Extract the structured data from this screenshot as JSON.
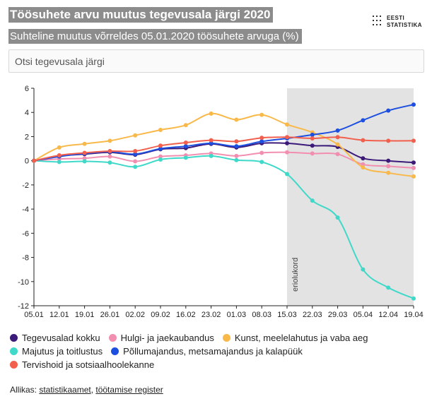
{
  "header": {
    "title": "Töösuhete arvu muutus tegevusala järgi 2020",
    "subtitle": "Suhteline muutus võrreldes 05.01.2020 töösuhete arvuga (%)"
  },
  "logo": {
    "line1": "EESTI",
    "line2": "STATISTIKA"
  },
  "search": {
    "placeholder": "Otsi tegevusala järgi"
  },
  "legend": {
    "rows": [
      [
        {
          "label": "Tegevusalad kokku",
          "color": "#3b1a7a"
        },
        {
          "label": "Hulgi- ja jaekaubandus",
          "color": "#f28fb1"
        },
        {
          "label": "Kunst, meelelahutus ja vaba aeg",
          "color": "#f9b94a"
        }
      ],
      [
        {
          "label": "Majutus ja toitlustus",
          "color": "#3fd9c9"
        },
        {
          "label": "Põllumajandus, metsamajandus ja kalapüük",
          "color": "#1c4fe0"
        }
      ],
      [
        {
          "label": "Tervishoid ja sotsiaalhoolekanne",
          "color": "#f25f4c"
        }
      ]
    ]
  },
  "source": {
    "prefix": "Allikas: ",
    "link1": "statistikaamet",
    "sep": ", ",
    "link2": "töötamise register"
  },
  "chart_data": {
    "type": "line",
    "categories": [
      "05.01",
      "12.01",
      "19.01",
      "26.01",
      "02.02",
      "09.02",
      "16.02",
      "23.02",
      "01.03",
      "08.03",
      "15.03",
      "22.03",
      "29.03",
      "05.04",
      "12.04",
      "19.04"
    ],
    "ylim": [
      -12,
      6
    ],
    "yticks": [
      6,
      4,
      2,
      0,
      -2,
      -4,
      -6,
      -8,
      -10,
      -12
    ],
    "grid": false,
    "band": {
      "from": "15.03",
      "to": "19.04",
      "label": "eriolukord",
      "color": "#e3e3e3"
    },
    "series": [
      {
        "name": "Tegevusalad kokku",
        "color": "#3b1a7a",
        "values": [
          0,
          0.4,
          0.55,
          0.7,
          0.5,
          0.95,
          1.05,
          1.4,
          1.1,
          1.45,
          1.45,
          1.25,
          1.15,
          0.2,
          0.0,
          -0.15
        ]
      },
      {
        "name": "Hulgi- ja jaekaubandus",
        "color": "#f28fb1",
        "values": [
          0,
          0.15,
          0.2,
          0.35,
          -0.05,
          0.35,
          0.45,
          0.6,
          0.4,
          0.65,
          0.7,
          0.6,
          0.55,
          -0.3,
          -0.45,
          -0.6
        ]
      },
      {
        "name": "Kunst, meelelahutus ja vaba aeg",
        "color": "#f9b94a",
        "values": [
          0,
          1.1,
          1.4,
          1.65,
          2.1,
          2.55,
          2.95,
          3.9,
          3.4,
          3.8,
          3.0,
          2.35,
          1.35,
          -0.55,
          -1.0,
          -1.3
        ]
      },
      {
        "name": "Majutus ja toitlustus",
        "color": "#3fd9c9",
        "values": [
          0,
          -0.1,
          -0.05,
          -0.15,
          -0.5,
          0.1,
          0.25,
          0.4,
          0.05,
          -0.1,
          -1.1,
          -3.3,
          -4.7,
          -9.0,
          -10.5,
          -11.4
        ]
      },
      {
        "name": "Põllumajandus, metsamajandus ja kalapüük",
        "color": "#1c4fe0",
        "values": [
          0,
          0.35,
          0.6,
          0.75,
          0.55,
          1.0,
          1.2,
          1.45,
          1.2,
          1.6,
          1.85,
          2.15,
          2.5,
          3.35,
          4.15,
          4.65
        ]
      },
      {
        "name": "Tervishoid ja sotsiaalhoolekanne",
        "color": "#f25f4c",
        "values": [
          0,
          0.45,
          0.65,
          0.8,
          0.8,
          1.25,
          1.5,
          1.7,
          1.6,
          1.9,
          1.95,
          1.85,
          1.95,
          1.7,
          1.65,
          1.65
        ]
      }
    ]
  }
}
